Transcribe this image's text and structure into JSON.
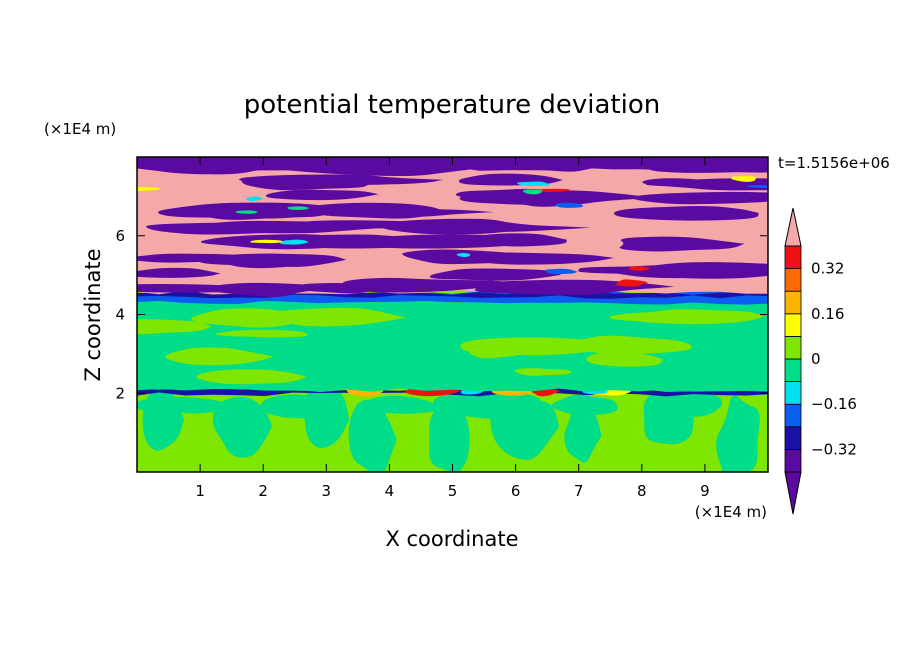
{
  "chart_data": {
    "type": "heatmap",
    "title": "potential temperature deviation",
    "xlabel": "X coordinate",
    "ylabel": "Z coordinate",
    "x_unit": "(×1E4 m)",
    "y_unit": "(×1E4 m)",
    "time_label": "t=1.5156e+06",
    "x_ticks": [
      1,
      2,
      3,
      4,
      5,
      6,
      7,
      8,
      9
    ],
    "y_ticks": [
      2,
      4,
      6
    ],
    "xlim": [
      0,
      10
    ],
    "ylim": [
      0,
      8
    ],
    "colorbar": {
      "labels": [
        "0.32",
        "0.16",
        "0",
        "−0.16",
        "−0.32"
      ],
      "label_values": [
        0.32,
        0.16,
        0,
        -0.16,
        -0.32
      ],
      "levels": [
        -0.4,
        -0.32,
        -0.24,
        -0.16,
        -0.08,
        0,
        0.08,
        0.16,
        0.24,
        0.32,
        0.4
      ],
      "colors": [
        "#5a0aa0",
        "#1a12a6",
        "#0b5ff0",
        "#00e0f0",
        "#00dd88",
        "#7ee600",
        "#ffff00",
        "#ffb400",
        "#ff6a00",
        "#ee1111"
      ],
      "over_color": "#f4a8a8",
      "under_color": "#5a0aa0"
    },
    "regions": [
      {
        "z_range": [
          0,
          2.0
        ],
        "dominant": "weak positive (0 to 0.08)",
        "secondary": "weak negative (−0.08 to 0)"
      },
      {
        "z_range": [
          2.0,
          2.1
        ],
        "dominant": "thin strong-deviation layer"
      },
      {
        "z_range": [
          2.1,
          4.3
        ],
        "dominant": "weak negative (−0.08 to 0)",
        "secondary": "weak positive (0 to 0.08)"
      },
      {
        "z_range": [
          4.3,
          4.5
        ],
        "dominant": "negative (−0.16 to −0.24)"
      },
      {
        "z_range": [
          4.5,
          8.0
        ],
        "dominant": "alternating bands: > 0.4 and < −0.4"
      }
    ]
  }
}
